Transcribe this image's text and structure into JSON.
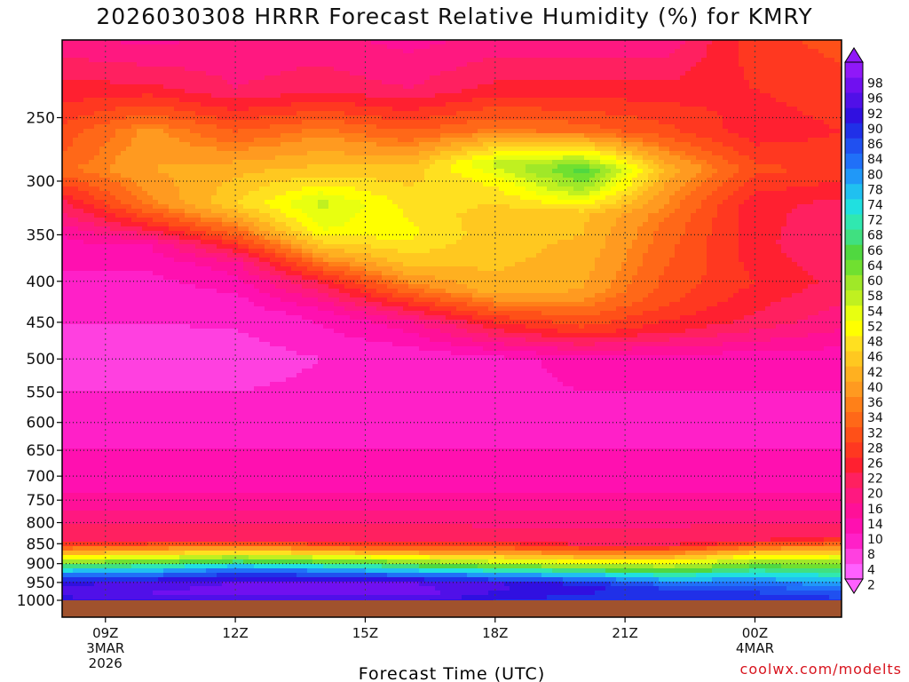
{
  "title": "2026030308 HRRR Forecast Relative Humidity (%) for KMRY",
  "footer": "coolwx.com/modelts",
  "chart_data": {
    "type": "heatmap",
    "title": "2026030308 HRRR Forecast Relative Humidity (%) for KMRY",
    "xlabel": "Forecast Time (UTC)",
    "ylabel": "",
    "y_ticks": [
      250,
      300,
      350,
      400,
      450,
      500,
      550,
      600,
      650,
      700,
      750,
      800,
      850,
      900,
      950,
      1000
    ],
    "y_range_hpa": [
      200,
      1000
    ],
    "y_scale": "log-pressure",
    "x_range_hours": [
      8,
      26
    ],
    "x_ticks": [
      {
        "hour": 9,
        "lines": [
          "09Z",
          "3MAR",
          "2026"
        ]
      },
      {
        "hour": 12,
        "lines": [
          "12Z"
        ]
      },
      {
        "hour": 15,
        "lines": [
          "15Z"
        ]
      },
      {
        "hour": 18,
        "lines": [
          "18Z"
        ]
      },
      {
        "hour": 21,
        "lines": [
          "21Z"
        ]
      },
      {
        "hour": 24,
        "lines": [
          "00Z",
          "4MAR"
        ]
      }
    ],
    "colorbar_levels": [
      2,
      4,
      8,
      10,
      14,
      16,
      20,
      22,
      26,
      28,
      32,
      34,
      36,
      40,
      42,
      46,
      48,
      52,
      54,
      58,
      60,
      64,
      66,
      68,
      72,
      74,
      78,
      80,
      84,
      86,
      90,
      92,
      96,
      98
    ],
    "colorbar_colors": [
      "#ff60ff",
      "#ff40e0",
      "#ff20c8",
      "#ff10b0",
      "#ff1098",
      "#ff1880",
      "#ff2060",
      "#ff2030",
      "#ff3820",
      "#ff5018",
      "#ff6818",
      "#ff8018",
      "#ff9a20",
      "#ffb020",
      "#ffc820",
      "#ffe020",
      "#ffff00",
      "#e8ff10",
      "#c0f020",
      "#a0e828",
      "#70e030",
      "#50d840",
      "#40e080",
      "#30e8b0",
      "#20e0e0",
      "#20c0f0",
      "#2098f8",
      "#2070f8",
      "#2050f0",
      "#2030e8",
      "#3010e0",
      "#5010e8",
      "#7010f0",
      "#9018f8"
    ],
    "grid": true,
    "rh_profiles": [
      {
        "hour": 8,
        "rh": [
          [
            200,
            16
          ],
          [
            230,
            22
          ],
          [
            260,
            28
          ],
          [
            290,
            32
          ],
          [
            320,
            20
          ],
          [
            350,
            12
          ],
          [
            400,
            8
          ],
          [
            500,
            4
          ],
          [
            600,
            8
          ],
          [
            700,
            10
          ],
          [
            760,
            14
          ],
          [
            800,
            18
          ],
          [
            840,
            20
          ],
          [
            870,
            38
          ],
          [
            895,
            58
          ],
          [
            920,
            74
          ],
          [
            950,
            90
          ],
          [
            980,
            92
          ],
          [
            1000,
            90
          ]
        ]
      },
      {
        "hour": 10,
        "rh": [
          [
            200,
            14
          ],
          [
            230,
            22
          ],
          [
            260,
            36
          ],
          [
            290,
            38
          ],
          [
            320,
            34
          ],
          [
            340,
            24
          ],
          [
            360,
            12
          ],
          [
            400,
            8
          ],
          [
            500,
            4
          ],
          [
            600,
            8
          ],
          [
            700,
            10
          ],
          [
            760,
            14
          ],
          [
            800,
            18
          ],
          [
            840,
            20
          ],
          [
            870,
            40
          ],
          [
            895,
            60
          ],
          [
            920,
            76
          ],
          [
            950,
            92
          ],
          [
            980,
            94
          ],
          [
            1000,
            90
          ]
        ]
      },
      {
        "hour": 12,
        "rh": [
          [
            200,
            16
          ],
          [
            230,
            18
          ],
          [
            260,
            30
          ],
          [
            290,
            40
          ],
          [
            320,
            44
          ],
          [
            350,
            30
          ],
          [
            380,
            14
          ],
          [
            420,
            8
          ],
          [
            500,
            4
          ],
          [
            600,
            8
          ],
          [
            700,
            10
          ],
          [
            760,
            14
          ],
          [
            800,
            18
          ],
          [
            840,
            20
          ],
          [
            860,
            36
          ],
          [
            885,
            58
          ],
          [
            915,
            80
          ],
          [
            950,
            94
          ],
          [
            980,
            96
          ],
          [
            1000,
            92
          ]
        ]
      },
      {
        "hour": 14,
        "rh": [
          [
            200,
            16
          ],
          [
            230,
            20
          ],
          [
            260,
            34
          ],
          [
            290,
            42
          ],
          [
            320,
            54
          ],
          [
            345,
            50
          ],
          [
            370,
            38
          ],
          [
            400,
            22
          ],
          [
            440,
            10
          ],
          [
            500,
            6
          ],
          [
            600,
            8
          ],
          [
            700,
            10
          ],
          [
            760,
            14
          ],
          [
            800,
            18
          ],
          [
            840,
            20
          ],
          [
            865,
            36
          ],
          [
            890,
            58
          ],
          [
            920,
            80
          ],
          [
            950,
            94
          ],
          [
            980,
            96
          ],
          [
            1000,
            92
          ]
        ]
      },
      {
        "hour": 16,
        "rh": [
          [
            200,
            14
          ],
          [
            230,
            18
          ],
          [
            260,
            30
          ],
          [
            290,
            42
          ],
          [
            320,
            46
          ],
          [
            350,
            48
          ],
          [
            380,
            42
          ],
          [
            410,
            32
          ],
          [
            450,
            14
          ],
          [
            500,
            6
          ],
          [
            600,
            8
          ],
          [
            700,
            10
          ],
          [
            760,
            14
          ],
          [
            800,
            18
          ],
          [
            840,
            20
          ],
          [
            870,
            36
          ],
          [
            895,
            58
          ],
          [
            925,
            78
          ],
          [
            950,
            94
          ],
          [
            980,
            96
          ],
          [
            1000,
            92
          ]
        ]
      },
      {
        "hour": 18,
        "rh": [
          [
            200,
            16
          ],
          [
            230,
            22
          ],
          [
            260,
            34
          ],
          [
            285,
            54
          ],
          [
            300,
            48
          ],
          [
            330,
            42
          ],
          [
            370,
            42
          ],
          [
            410,
            40
          ],
          [
            450,
            24
          ],
          [
            500,
            8
          ],
          [
            600,
            8
          ],
          [
            700,
            10
          ],
          [
            760,
            14
          ],
          [
            810,
            18
          ],
          [
            840,
            20
          ],
          [
            875,
            38
          ],
          [
            905,
            60
          ],
          [
            930,
            78
          ],
          [
            955,
            92
          ],
          [
            985,
            90
          ],
          [
            1000,
            88
          ]
        ]
      },
      {
        "hour": 20,
        "rh": [
          [
            200,
            16
          ],
          [
            230,
            22
          ],
          [
            260,
            32
          ],
          [
            290,
            64
          ],
          [
            305,
            58
          ],
          [
            330,
            42
          ],
          [
            370,
            40
          ],
          [
            410,
            38
          ],
          [
            460,
            26
          ],
          [
            500,
            10
          ],
          [
            600,
            8
          ],
          [
            700,
            10
          ],
          [
            760,
            14
          ],
          [
            810,
            18
          ],
          [
            850,
            20
          ],
          [
            880,
            38
          ],
          [
            910,
            60
          ],
          [
            935,
            78
          ],
          [
            960,
            90
          ],
          [
            985,
            88
          ],
          [
            1000,
            86
          ]
        ]
      },
      {
        "hour": 22,
        "rh": [
          [
            200,
            16
          ],
          [
            230,
            22
          ],
          [
            260,
            28
          ],
          [
            290,
            40
          ],
          [
            310,
            36
          ],
          [
            340,
            32
          ],
          [
            380,
            30
          ],
          [
            420,
            28
          ],
          [
            460,
            22
          ],
          [
            500,
            10
          ],
          [
            600,
            8
          ],
          [
            700,
            10
          ],
          [
            760,
            14
          ],
          [
            810,
            18
          ],
          [
            850,
            20
          ],
          [
            880,
            38
          ],
          [
            910,
            58
          ],
          [
            935,
            72
          ],
          [
            960,
            84
          ],
          [
            985,
            86
          ],
          [
            1000,
            86
          ]
        ]
      },
      {
        "hour": 24,
        "rh": [
          [
            200,
            26
          ],
          [
            230,
            24
          ],
          [
            260,
            22
          ],
          [
            290,
            28
          ],
          [
            320,
            22
          ],
          [
            360,
            22
          ],
          [
            400,
            24
          ],
          [
            450,
            20
          ],
          [
            500,
            10
          ],
          [
            600,
            8
          ],
          [
            700,
            10
          ],
          [
            760,
            14
          ],
          [
            800,
            18
          ],
          [
            840,
            20
          ],
          [
            870,
            40
          ],
          [
            900,
            60
          ],
          [
            930,
            72
          ],
          [
            955,
            82
          ],
          [
            985,
            86
          ],
          [
            1000,
            86
          ]
        ]
      },
      {
        "hour": 26,
        "rh": [
          [
            200,
            28
          ],
          [
            230,
            26
          ],
          [
            260,
            24
          ],
          [
            290,
            26
          ],
          [
            320,
            20
          ],
          [
            360,
            18
          ],
          [
            400,
            20
          ],
          [
            450,
            16
          ],
          [
            500,
            10
          ],
          [
            600,
            8
          ],
          [
            700,
            10
          ],
          [
            760,
            14
          ],
          [
            800,
            18
          ],
          [
            830,
            20
          ],
          [
            860,
            36
          ],
          [
            890,
            54
          ],
          [
            920,
            66
          ],
          [
            950,
            76
          ],
          [
            985,
            84
          ],
          [
            1000,
            86
          ]
        ]
      }
    ]
  }
}
